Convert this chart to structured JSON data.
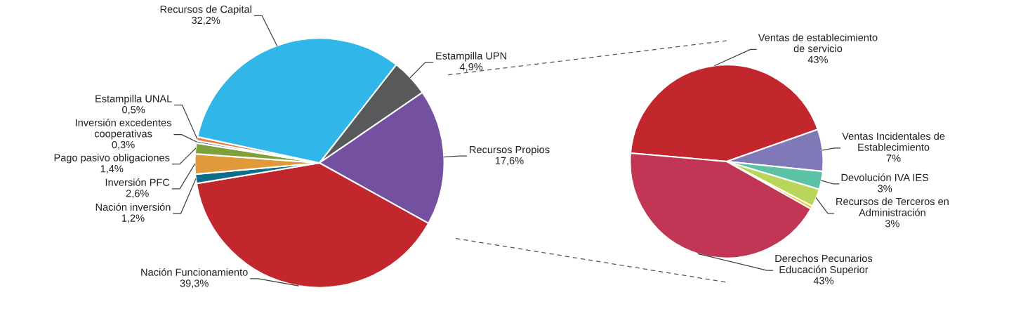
{
  "chart_data": [
    {
      "type": "pie",
      "categories": [
        "Estampilla UPN",
        "Recursos Propios",
        "Nación Funcionamiento",
        "Nación inversión",
        "Inversión PFC",
        "Pago pasivo obligaciones",
        "Inversión excedentes\ncooperativas",
        "Estampilla UNAL",
        "Recursos de Capital"
      ],
      "values": [
        4.9,
        17.6,
        39.3,
        1.2,
        2.6,
        1.4,
        0.3,
        0.5,
        32.2
      ],
      "value_labels": [
        "4,9%",
        "17,6%",
        "39,3%",
        "1,2%",
        "2,6%",
        "1,4%",
        "0,3%",
        "0,5%",
        "32,2%"
      ],
      "colors": [
        "#58595b",
        "#7451a0",
        "#c1272d",
        "#0e6e8a",
        "#e09a3a",
        "#7ea13a",
        "#3d5fa8",
        "#ee7a3c",
        "#30b6e8"
      ]
    },
    {
      "type": "pie",
      "categories": [
        "Ventas de establecimiento\nde servicio",
        "Ventas Incidentales de\nEstablecimiento",
        "Devolución IVA IES",
        "Recursos de Terceros en\nAdministración",
        null,
        "Derechos Pecunarios\nEducación Superior"
      ],
      "values": [
        43,
        7,
        3,
        3,
        0.5,
        43
      ],
      "value_labels": [
        "43%",
        "7%",
        "3%",
        "3%",
        null,
        "43%"
      ],
      "colors": [
        "#c1272d",
        "#8079b8",
        "#5cc2a6",
        "#b9d65a",
        "#f2c21b",
        "#c13555"
      ]
    }
  ]
}
